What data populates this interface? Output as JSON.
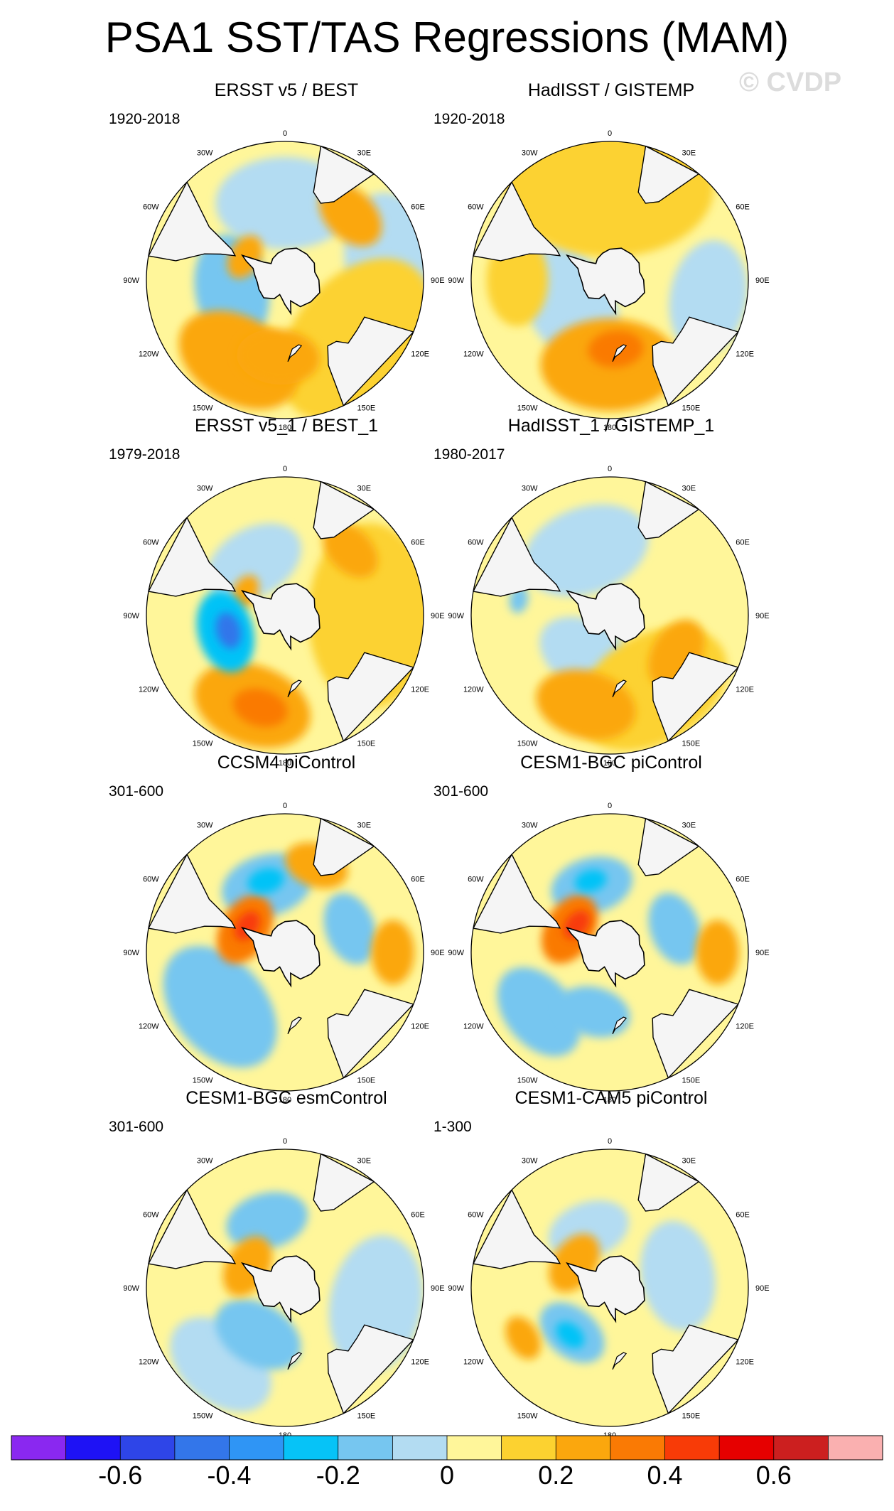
{
  "title": "PSA1 SST/TAS Regressions (MAM)",
  "watermark": "© CVDP",
  "colors": {
    "bg": "#ffffff",
    "land": "#f5f5f5",
    "coast": "#000000"
  },
  "chart_data": {
    "type": "heatmap",
    "projection": "south-polar-stereographic",
    "variable": "SST/TAS regression onto PSA1",
    "season": "MAM",
    "lon_labels": [
      "0",
      "30E",
      "60E",
      "90E",
      "120E",
      "150E",
      "180",
      "150W",
      "120W",
      "90W",
      "60W",
      "30W"
    ],
    "colorbar": {
      "levels": [
        -0.7,
        -0.6,
        -0.5,
        -0.4,
        -0.3,
        -0.2,
        -0.1,
        0,
        0.1,
        0.2,
        0.3,
        0.4,
        0.5,
        0.6,
        0.7
      ],
      "colors": [
        "#8a28f0",
        "#1e12f5",
        "#2e45e8",
        "#3376ea",
        "#2f95f5",
        "#06c3f7",
        "#76c6f0",
        "#b3dcf2",
        "#fff69a",
        "#fcd230",
        "#fba70d",
        "#fa7a04",
        "#f83b07",
        "#e60000",
        "#cc1f1f",
        "#fab0b0"
      ],
      "labels": [
        "-0.6",
        "-0.4",
        "-0.2",
        "0",
        "0.2",
        "0.4",
        "0.6"
      ],
      "label_values": [
        -0.6,
        -0.4,
        -0.2,
        0,
        0.2,
        0.4,
        0.6
      ]
    },
    "panels": [
      {
        "title": "ERSST v5 / BEST",
        "period": "1920-2018",
        "blobs": [
          {
            "value": 0.15,
            "lon": 130,
            "colat": 60,
            "size": 40
          },
          {
            "value": 0.2,
            "lon": -150,
            "colat": 60,
            "size": 28
          },
          {
            "value": 0.2,
            "lon": -175,
            "colat": 50,
            "size": 18
          },
          {
            "value": 0.2,
            "lon": 45,
            "colat": 60,
            "size": 16
          },
          {
            "value": 0.25,
            "lon": -60,
            "colat": 30,
            "size": 10
          },
          {
            "value": -0.15,
            "lon": -100,
            "colat": 35,
            "size": 24
          },
          {
            "value": -0.1,
            "lon": 0,
            "colat": 50,
            "size": 30
          },
          {
            "value": -0.1,
            "lon": 80,
            "colat": 70,
            "size": 30
          }
        ]
      },
      {
        "title": "HadISST / GISTEMP",
        "period": "1920-2018",
        "blobs": [
          {
            "value": 0.15,
            "lon": 0,
            "colat": 60,
            "size": 45
          },
          {
            "value": 0.25,
            "lon": 180,
            "colat": 55,
            "size": 30
          },
          {
            "value": 0.3,
            "lon": 175,
            "colat": 45,
            "size": 12
          },
          {
            "value": -0.1,
            "lon": -120,
            "colat": 30,
            "size": 28
          },
          {
            "value": -0.1,
            "lon": 100,
            "colat": 65,
            "size": 25
          },
          {
            "value": 0.15,
            "lon": -90,
            "colat": 60,
            "size": 20
          }
        ]
      },
      {
        "title": "ERSST v5_1 / BEST_1",
        "period": "1979-2018",
        "blobs": [
          {
            "value": 0.15,
            "lon": 90,
            "colat": 55,
            "size": 40
          },
          {
            "value": 0.25,
            "lon": -160,
            "colat": 62,
            "size": 26
          },
          {
            "value": 0.3,
            "lon": -165,
            "colat": 62,
            "size": 12
          },
          {
            "value": 0.2,
            "lon": 45,
            "colat": 60,
            "size": 14
          },
          {
            "value": -0.3,
            "lon": -105,
            "colat": 40,
            "size": 18
          },
          {
            "value": -0.5,
            "lon": -105,
            "colat": 38,
            "size": 8
          },
          {
            "value": -0.1,
            "lon": -30,
            "colat": 40,
            "size": 22
          },
          {
            "value": 0.25,
            "lon": -60,
            "colat": 30,
            "size": 8
          }
        ]
      },
      {
        "title": "HadISST_1 / GISTEMP_1",
        "period": "1980-2017",
        "blobs": [
          {
            "value": 0.15,
            "lon": 150,
            "colat": 55,
            "size": 35
          },
          {
            "value": 0.25,
            "lon": -165,
            "colat": 60,
            "size": 22
          },
          {
            "value": 0.2,
            "lon": 120,
            "colat": 50,
            "size": 16
          },
          {
            "value": -0.1,
            "lon": -20,
            "colat": 45,
            "size": 28
          },
          {
            "value": -0.1,
            "lon": -150,
            "colat": 30,
            "size": 22
          },
          {
            "value": -0.2,
            "lon": -80,
            "colat": 60,
            "size": 6
          }
        ]
      },
      {
        "title": "CCSM4 piControl",
        "period": "301-600",
        "blobs": [
          {
            "value": 0.3,
            "lon": -60,
            "colat": 30,
            "size": 16
          },
          {
            "value": 0.4,
            "lon": -55,
            "colat": 30,
            "size": 7
          },
          {
            "value": -0.2,
            "lon": -15,
            "colat": 45,
            "size": 20
          },
          {
            "value": -0.3,
            "lon": -15,
            "colat": 48,
            "size": 8
          },
          {
            "value": -0.15,
            "lon": -130,
            "colat": 55,
            "size": 30
          },
          {
            "value": -0.15,
            "lon": 70,
            "colat": 45,
            "size": 16
          },
          {
            "value": 0.2,
            "lon": 90,
            "colat": 70,
            "size": 14
          },
          {
            "value": 0.2,
            "lon": 20,
            "colat": 60,
            "size": 14
          }
        ]
      },
      {
        "title": "CESM1-BGC piControl",
        "period": "301-600",
        "blobs": [
          {
            "value": 0.3,
            "lon": -60,
            "colat": 30,
            "size": 16
          },
          {
            "value": 0.45,
            "lon": -50,
            "colat": 28,
            "size": 7
          },
          {
            "value": -0.2,
            "lon": -15,
            "colat": 45,
            "size": 18
          },
          {
            "value": -0.3,
            "lon": -15,
            "colat": 48,
            "size": 7
          },
          {
            "value": -0.2,
            "lon": -165,
            "colat": 40,
            "size": 16
          },
          {
            "value": -0.15,
            "lon": -130,
            "colat": 60,
            "size": 22
          },
          {
            "value": -0.15,
            "lon": 70,
            "colat": 45,
            "size": 16
          },
          {
            "value": 0.2,
            "lon": 90,
            "colat": 70,
            "size": 14
          }
        ]
      },
      {
        "title": "CESM1-BGC esmControl",
        "period": "301-600",
        "blobs": [
          {
            "value": 0.25,
            "lon": -60,
            "colat": 28,
            "size": 14
          },
          {
            "value": -0.15,
            "lon": -15,
            "colat": 45,
            "size": 18
          },
          {
            "value": -0.15,
            "lon": -150,
            "colat": 35,
            "size": 20
          },
          {
            "value": -0.1,
            "lon": 100,
            "colat": 60,
            "size": 30
          },
          {
            "value": -0.1,
            "lon": -140,
            "colat": 65,
            "size": 25
          }
        ]
      },
      {
        "title": "CESM1-CAM5 piControl",
        "period": "1-300",
        "blobs": [
          {
            "value": 0.25,
            "lon": -55,
            "colat": 28,
            "size": 14
          },
          {
            "value": -0.2,
            "lon": -140,
            "colat": 38,
            "size": 16
          },
          {
            "value": -0.3,
            "lon": -140,
            "colat": 40,
            "size": 7
          },
          {
            "value": 0.2,
            "lon": -120,
            "colat": 65,
            "size": 10
          },
          {
            "value": -0.1,
            "lon": 80,
            "colat": 45,
            "size": 24
          },
          {
            "value": -0.1,
            "lon": -20,
            "colat": 40,
            "size": 18
          }
        ]
      }
    ]
  }
}
